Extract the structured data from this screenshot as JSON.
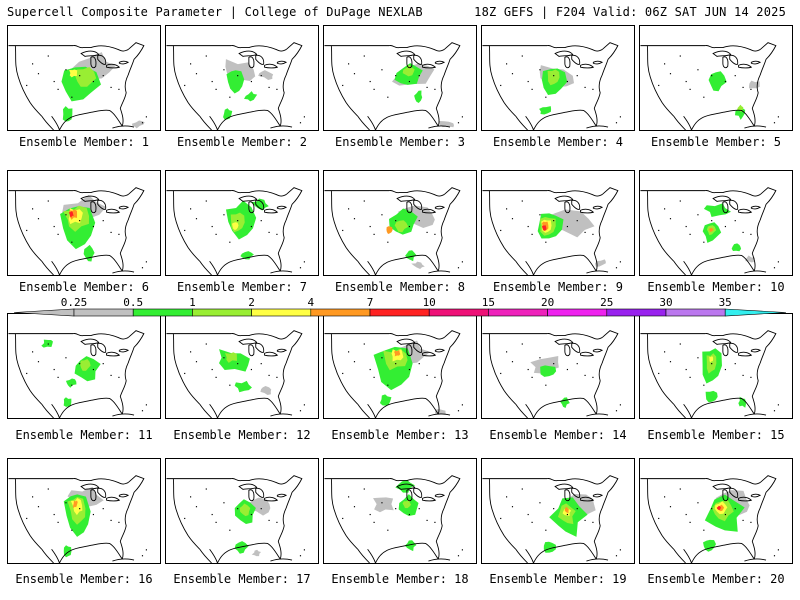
{
  "header": {
    "title": "Supercell Composite Parameter | College of DuPage NEXLAB",
    "run_info": "18Z GEFS | F204 Valid: 06Z SAT JUN 14 2025"
  },
  "colors": {
    "background": "#ffffff",
    "map_lines": "#000000"
  },
  "colorbar": {
    "ticks": [
      {
        "label": "0.25",
        "color": "#c0c0c0"
      },
      {
        "label": "0.5",
        "color": "#33ee33"
      },
      {
        "label": "1",
        "color": "#99ee33"
      },
      {
        "label": "2",
        "color": "#ffff44"
      },
      {
        "label": "4",
        "color": "#ff9922"
      },
      {
        "label": "7",
        "color": "#ff2222"
      },
      {
        "label": "10",
        "color": "#ee1177"
      },
      {
        "label": "15",
        "color": "#ee22bb"
      },
      {
        "label": "20",
        "color": "#ee22ee"
      },
      {
        "label": "25",
        "color": "#9922ee"
      },
      {
        "label": "30",
        "color": "#bb77ee"
      },
      {
        "label": "35",
        "color": "#33eeee"
      }
    ]
  },
  "members": [
    {
      "label": "Ensemble Member: 1"
    },
    {
      "label": "Ensemble Member: 2"
    },
    {
      "label": "Ensemble Member: 3"
    },
    {
      "label": "Ensemble Member: 4"
    },
    {
      "label": "Ensemble Member: 5"
    },
    {
      "label": "Ensemble Member: 6"
    },
    {
      "label": "Ensemble Member: 7"
    },
    {
      "label": "Ensemble Member: 8"
    },
    {
      "label": "Ensemble Member: 9"
    },
    {
      "label": "Ensemble Member: 10"
    },
    {
      "label": "Ensemble Member: 11"
    },
    {
      "label": "Ensemble Member: 12"
    },
    {
      "label": "Ensemble Member: 13"
    },
    {
      "label": "Ensemble Member: 14"
    },
    {
      "label": "Ensemble Member: 15"
    },
    {
      "label": "Ensemble Member: 16"
    },
    {
      "label": "Ensemble Member: 17"
    },
    {
      "label": "Ensemble Member: 18"
    },
    {
      "label": "Ensemble Member: 19"
    },
    {
      "label": "Ensemble Member: 20"
    }
  ]
}
